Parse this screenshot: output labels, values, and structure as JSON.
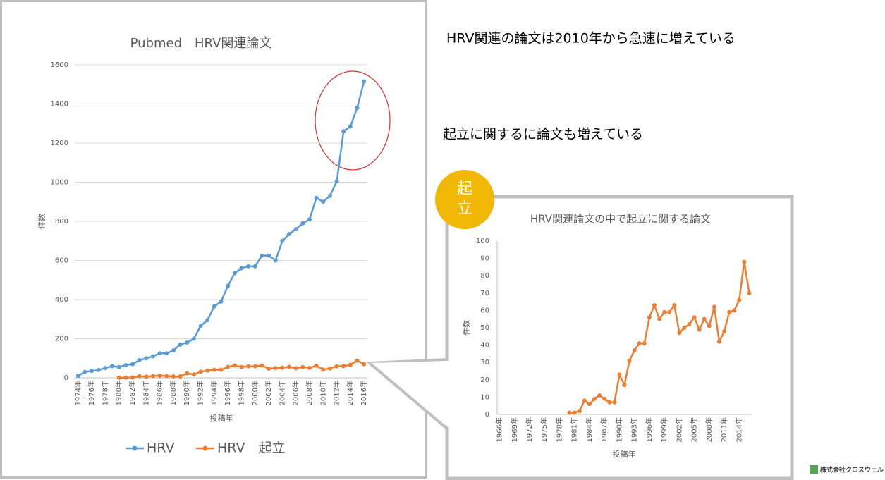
{
  "chart_data": [
    {
      "type": "line",
      "title": "Pubmed　HRV関連論文",
      "y_label": "件数",
      "x_label": "投稿年",
      "categories": [
        "1974年",
        null,
        "1976年",
        null,
        "1978年",
        null,
        "1980年",
        null,
        "1982年",
        null,
        "1984年",
        null,
        "1986年",
        null,
        "1988年",
        null,
        "1990年",
        null,
        "1992年",
        null,
        "1994年",
        null,
        "1996年",
        null,
        "1998年",
        null,
        "2000年",
        null,
        "2002年",
        null,
        "2004年",
        null,
        "2006年",
        null,
        "2008年",
        null,
        "2010年",
        null,
        "2012年",
        null,
        "2014年",
        null,
        "2016年"
      ],
      "series": [
        {
          "name": "HRV",
          "color": "#5b9bd5",
          "values": [
            10,
            30,
            35,
            40,
            50,
            60,
            55,
            65,
            70,
            90,
            100,
            110,
            125,
            125,
            140,
            170,
            180,
            200,
            265,
            295,
            365,
            390,
            470,
            535,
            560,
            570,
            570,
            625,
            625,
            600,
            700,
            735,
            760,
            790,
            810,
            920,
            900,
            930,
            1005,
            1260,
            1285,
            1380,
            1515
          ]
        },
        {
          "name": "HRV　起立",
          "color": "#ed7d31",
          "values": [
            null,
            null,
            null,
            null,
            null,
            null,
            1,
            1,
            2,
            8,
            6,
            9,
            11,
            9,
            7,
            7,
            23,
            17,
            31,
            37,
            41,
            41,
            56,
            63,
            55,
            59,
            59,
            63,
            47,
            50,
            52,
            56,
            49,
            55,
            51,
            62,
            42,
            48,
            59,
            60,
            66,
            88,
            70
          ]
        }
      ],
      "ylim": [
        0,
        1600
      ],
      "yticks": [
        0,
        200,
        400,
        600,
        800,
        1000,
        1200,
        1400,
        1600
      ],
      "grid": true,
      "legend": "bottom"
    },
    {
      "type": "line",
      "title": "HRV関連論文の中で起立に関する論文",
      "y_label": "件数",
      "x_label": "投稿年",
      "categories": [
        "1966年",
        null,
        null,
        "1969年",
        null,
        null,
        "1972年",
        null,
        null,
        "1975年",
        null,
        null,
        "1978年",
        null,
        null,
        "1981年",
        null,
        null,
        "1984年",
        null,
        null,
        "1987年",
        null,
        null,
        "1990年",
        null,
        null,
        "1993年",
        null,
        null,
        "1996年",
        null,
        null,
        "1999年",
        null,
        null,
        "2002年",
        null,
        null,
        "2005年",
        null,
        null,
        "2008年",
        null,
        null,
        "2011年",
        null,
        null,
        "2014年",
        null,
        null
      ],
      "color": "#ed7d31",
      "values": [
        null,
        null,
        null,
        null,
        null,
        null,
        null,
        null,
        null,
        null,
        null,
        null,
        null,
        null,
        1,
        1,
        2,
        8,
        6,
        9,
        11,
        9,
        7,
        7,
        23,
        17,
        31,
        37,
        41,
        41,
        56,
        63,
        55,
        59,
        59,
        63,
        47,
        50,
        52,
        56,
        49,
        55,
        51,
        62,
        42,
        48,
        59,
        60,
        66,
        88,
        70
      ],
      "ylim": [
        0,
        100
      ],
      "yticks": [
        0,
        10,
        20,
        30,
        40,
        50,
        60,
        70,
        80,
        90,
        100
      ],
      "grid": false
    }
  ],
  "notes": {
    "headline": "HRV関連の論文は2010年から急速に増えている",
    "subline": "起立に関するに論文も増えている",
    "badge_top": "起",
    "badge_bottom": "立",
    "logo": "株式会社クロスウェル"
  }
}
